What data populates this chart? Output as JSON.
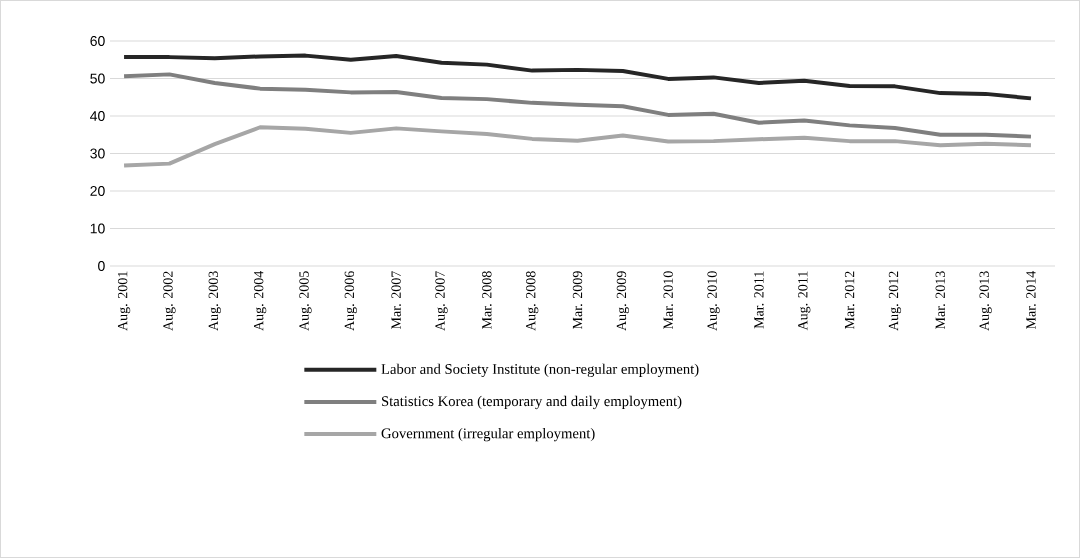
{
  "chart_data": {
    "type": "line",
    "categories": [
      "Aug. 2001",
      "Aug. 2002",
      "Aug. 2003",
      "Aug. 2004",
      "Aug. 2005",
      "Aug. 2006",
      "Mar. 2007",
      "Aug. 2007",
      "Mar. 2008",
      "Aug. 2008",
      "Mar. 2009",
      "Aug. 2009",
      "Mar. 2010",
      "Aug. 2010",
      "Mar. 2011",
      "Aug. 2011",
      "Mar. 2012",
      "Aug. 2012",
      "Mar. 2013",
      "Aug. 2013",
      "Mar. 2014"
    ],
    "series": [
      {
        "name": "Labor and Society Institute (non-regular employment)",
        "color": "#262626",
        "values": [
          55.7,
          55.7,
          55.4,
          55.9,
          56.1,
          55.0,
          56.0,
          54.2,
          53.7,
          52.1,
          52.3,
          52.0,
          49.9,
          50.3,
          48.8,
          49.4,
          48.0,
          47.9,
          46.1,
          45.9,
          44.7
        ]
      },
      {
        "name": "Statistics Korea (temporary and daily employment)",
        "color": "#7f7f7f",
        "values": [
          50.6,
          51.1,
          48.8,
          47.3,
          47.0,
          46.3,
          46.4,
          44.8,
          44.5,
          43.5,
          43.0,
          42.6,
          40.3,
          40.6,
          38.2,
          38.8,
          37.5,
          36.8,
          35.0,
          35.0,
          34.5
        ]
      },
      {
        "name": "Government (irregular employment)",
        "color": "#a6a6a6",
        "values": [
          26.8,
          27.3,
          32.5,
          37.0,
          36.6,
          35.5,
          36.7,
          35.9,
          35.2,
          33.9,
          33.4,
          34.8,
          33.2,
          33.3,
          33.8,
          34.2,
          33.3,
          33.3,
          32.2,
          32.6,
          32.2
        ]
      }
    ],
    "ylim": [
      0,
      60
    ],
    "yticks": [
      0,
      10,
      20,
      30,
      40,
      50,
      60
    ],
    "grid": "y",
    "legend": "bottom",
    "marker": "none",
    "line_style": "solid"
  }
}
